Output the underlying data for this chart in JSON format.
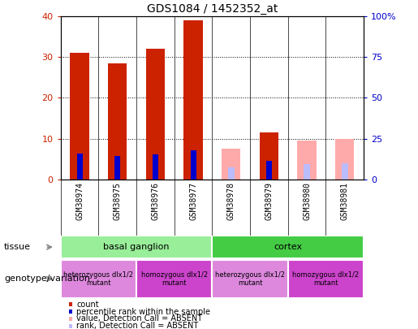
{
  "title": "GDS1084 / 1452352_at",
  "samples": [
    "GSM38974",
    "GSM38975",
    "GSM38976",
    "GSM38977",
    "GSM38978",
    "GSM38979",
    "GSM38980",
    "GSM38981"
  ],
  "count_values": [
    31,
    28.5,
    32,
    39,
    0,
    11.5,
    0,
    0
  ],
  "percentile_rank": [
    16,
    14.5,
    15.5,
    18,
    0,
    11.5,
    0,
    0
  ],
  "absent_value": [
    0,
    0,
    0,
    0,
    7.5,
    0,
    9.5,
    10
  ],
  "absent_rank": [
    0,
    0,
    0,
    0,
    7.5,
    0,
    9.5,
    10
  ],
  "is_absent": [
    false,
    false,
    false,
    false,
    true,
    false,
    true,
    true
  ],
  "ylim_left": [
    0,
    40
  ],
  "ylim_right": [
    0,
    100
  ],
  "yticks_left": [
    0,
    10,
    20,
    30,
    40
  ],
  "yticks_right": [
    0,
    25,
    50,
    75,
    100
  ],
  "ytick_right_labels": [
    "0",
    "25",
    "50",
    "75",
    "100%"
  ],
  "color_count": "#cc2200",
  "color_rank": "#0000cc",
  "color_absent_value": "#ffaaaa",
  "color_absent_rank": "#bbbbff",
  "tissue_groups": [
    {
      "label": "basal ganglion",
      "start": 0,
      "end": 3,
      "color": "#99ee99"
    },
    {
      "label": "cortex",
      "start": 4,
      "end": 7,
      "color": "#44cc44"
    }
  ],
  "genotype_groups": [
    {
      "label": "heterozygous dlx1/2\nmutant",
      "start": 0,
      "end": 1,
      "color": "#dd88dd"
    },
    {
      "label": "homozygous dlx1/2\nmutant",
      "start": 2,
      "end": 3,
      "color": "#cc44cc"
    },
    {
      "label": "heterozygous dlx1/2\nmutant",
      "start": 4,
      "end": 5,
      "color": "#dd88dd"
    },
    {
      "label": "homozygous dlx1/2\nmutant",
      "start": 6,
      "end": 7,
      "color": "#cc44cc"
    }
  ],
  "legend_items": [
    {
      "label": "count",
      "color": "#cc2200"
    },
    {
      "label": "percentile rank within the sample",
      "color": "#0000cc"
    },
    {
      "label": "value, Detection Call = ABSENT",
      "color": "#ffaaaa"
    },
    {
      "label": "rank, Detection Call = ABSENT",
      "color": "#bbbbff"
    }
  ],
  "tissue_label": "tissue",
  "genotype_label": "genotype/variation",
  "axis_label_color_left": "#cc2200",
  "axis_label_color_right": "#0000cc"
}
